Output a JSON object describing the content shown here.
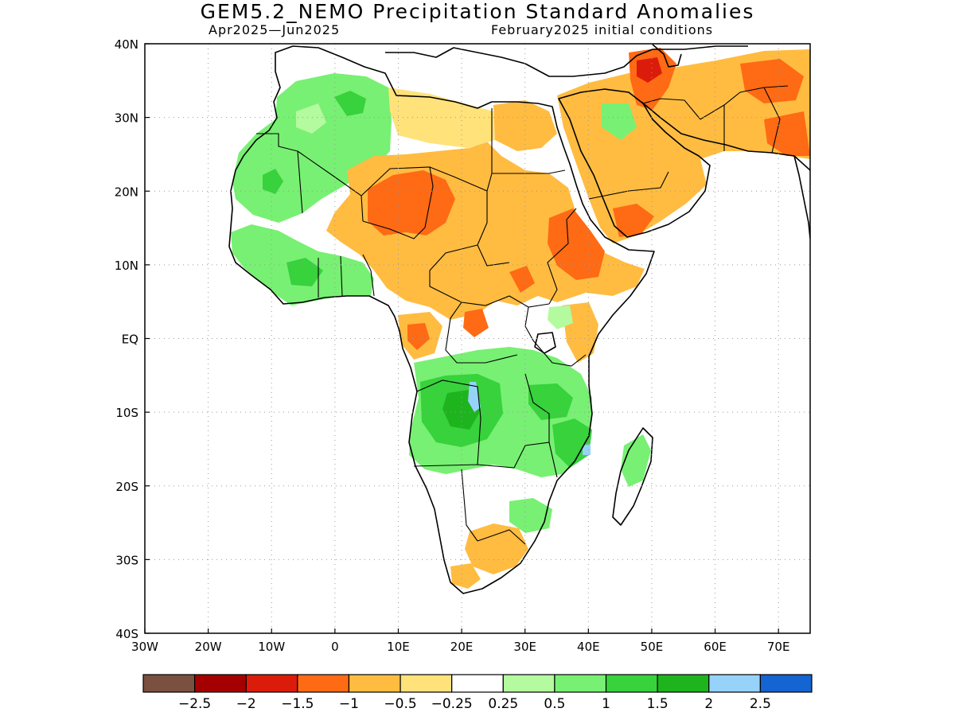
{
  "title": "GEM5.2_NEMO Precipitation Standard Anomalies",
  "subtitle_left": "Apr2025—Jun2025",
  "subtitle_right": "February2025 initial conditions",
  "map": {
    "lon_range": [
      -30,
      75
    ],
    "lat_range": [
      -40,
      40
    ],
    "lon_ticks": [
      {
        "value": -30,
        "label": "30W"
      },
      {
        "value": -20,
        "label": "20W"
      },
      {
        "value": -10,
        "label": "10W"
      },
      {
        "value": 0,
        "label": "0"
      },
      {
        "value": 10,
        "label": "10E"
      },
      {
        "value": 20,
        "label": "20E"
      },
      {
        "value": 30,
        "label": "30E"
      },
      {
        "value": 40,
        "label": "40E"
      },
      {
        "value": 50,
        "label": "50E"
      },
      {
        "value": 60,
        "label": "60E"
      },
      {
        "value": 70,
        "label": "70E"
      }
    ],
    "lat_ticks": [
      {
        "value": 40,
        "label": "40N"
      },
      {
        "value": 30,
        "label": "30N"
      },
      {
        "value": 20,
        "label": "20N"
      },
      {
        "value": 10,
        "label": "10N"
      },
      {
        "value": 0,
        "label": "EQ"
      },
      {
        "value": -10,
        "label": "10S"
      },
      {
        "value": -20,
        "label": "20S"
      },
      {
        "value": -30,
        "label": "30S"
      },
      {
        "value": -40,
        "label": "40S"
      }
    ],
    "grid": true
  },
  "legend": {
    "colors": [
      "#7a5040",
      "#a50000",
      "#dc1c0a",
      "#ff6a14",
      "#ffbc41",
      "#ffe27a",
      "#ffffff",
      "#b4fa9f",
      "#78f073",
      "#37d23c",
      "#1eb41e",
      "#96d2fa",
      "#1464d2"
    ],
    "labels": [
      "−2.5",
      "−2",
      "−1.5",
      "−1",
      "−0.5",
      "−0.25",
      "0.25",
      "0.5",
      "1",
      "1.5",
      "2",
      "2.5"
    ]
  },
  "colors": {
    "land_outline": "#000000",
    "grid": "#9a9a9a"
  }
}
